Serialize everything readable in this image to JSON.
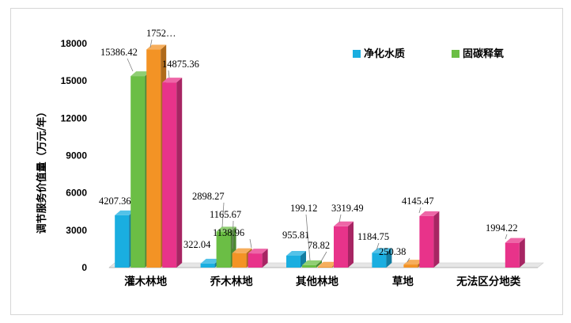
{
  "chart_data": {
    "type": "bar",
    "title": "",
    "ylabel": "调节服务价值量（万元/年）",
    "xlabel": "",
    "ylim": [
      0,
      18000
    ],
    "yticks": [
      "0",
      "3000",
      "6000",
      "9000",
      "12000",
      "15000",
      "18000"
    ],
    "categories": [
      "灌木林地",
      "乔木林地",
      "其他林地",
      "草地",
      "无法区分地类"
    ],
    "legend_position": "top-right",
    "gridlines": false,
    "series": [
      {
        "name": "净化水质",
        "color": "#1AAEE0",
        "values": [
          4207.36,
          322.04,
          955.81,
          1184.75,
          null
        ],
        "labels": [
          "4207.36",
          "322.04",
          "955.81",
          "1184.75",
          ""
        ]
      },
      {
        "name": "固碳释氧",
        "color": "#6BBE45",
        "values": [
          15386.42,
          2898.27,
          199.12,
          null,
          null
        ],
        "labels": [
          "15386.42",
          "2898.27",
          "199.12",
          "",
          ""
        ]
      },
      {
        "name": "",
        "color": "#F39325",
        "values": [
          17520,
          1165.67,
          78.82,
          250.38,
          null
        ],
        "labels": [
          "1752…",
          "1165.67",
          "78.82",
          "250.38",
          ""
        ]
      },
      {
        "name": "",
        "color": "#E8338A",
        "values": [
          14875.36,
          1138.96,
          3319.49,
          4145.47,
          1994.22
        ],
        "labels": [
          "14875.36",
          "1138.96",
          "3319.49",
          "4145.47",
          "1994.22"
        ]
      }
    ]
  }
}
